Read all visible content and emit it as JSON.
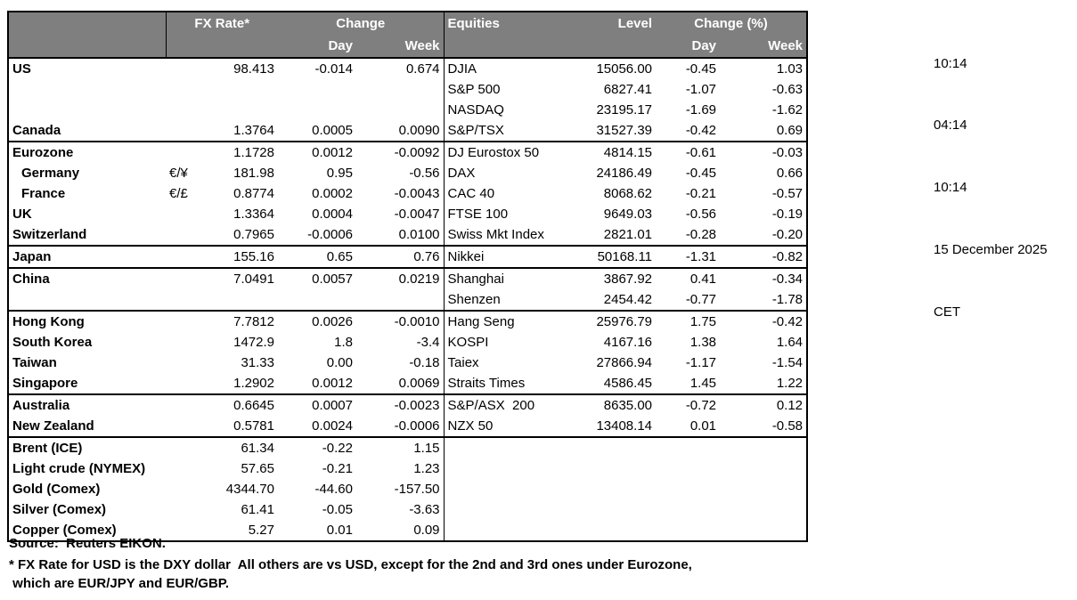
{
  "table": {
    "header": {
      "fx_rate": "FX Rate*",
      "change": "Change",
      "day": "Day",
      "week": "Week",
      "equities": "Equities",
      "level": "Level",
      "change_pct": "Change (%)"
    },
    "rows": [
      {
        "country": "US",
        "pair": "",
        "rate": "98.413",
        "fx_day": "-0.014",
        "fx_week": "0.674",
        "equity": "DJIA",
        "level": "15056.00",
        "eq_day": "-0.45",
        "eq_week": "1.03"
      },
      {
        "country": "",
        "pair": "",
        "rate": "",
        "fx_day": "",
        "fx_week": "",
        "equity": "S&P 500",
        "level": "6827.41",
        "eq_day": "-1.07",
        "eq_week": "-0.63"
      },
      {
        "country": "",
        "pair": "",
        "rate": "",
        "fx_day": "",
        "fx_week": "",
        "equity": "NASDAQ",
        "level": "23195.17",
        "eq_day": "-1.69",
        "eq_week": "-1.62"
      },
      {
        "country": "Canada",
        "pair": "",
        "rate": "1.3764",
        "fx_day": "0.0005",
        "fx_week": "0.0090",
        "equity": "S&P/TSX",
        "level": "31527.39",
        "eq_day": "-0.42",
        "eq_week": "0.69",
        "group_end": true
      },
      {
        "country": "Eurozone",
        "pair": "",
        "rate": "1.1728",
        "fx_day": "0.0012",
        "fx_week": "-0.0092",
        "equity": "DJ Eurostox 50",
        "level": "4814.15",
        "eq_day": "-0.61",
        "eq_week": "-0.03"
      },
      {
        "country": "Germany",
        "indent": true,
        "pair": "€/¥",
        "rate": "181.98",
        "fx_day": "0.95",
        "fx_week": "-0.56",
        "equity": "DAX",
        "level": "24186.49",
        "eq_day": "-0.45",
        "eq_week": "0.66"
      },
      {
        "country": "France",
        "indent": true,
        "pair": "€/£",
        "rate": "0.8774",
        "fx_day": "0.0002",
        "fx_week": "-0.0043",
        "equity": "CAC 40",
        "level": "8068.62",
        "eq_day": "-0.21",
        "eq_week": "-0.57"
      },
      {
        "country": "UK",
        "pair": "",
        "rate": "1.3364",
        "fx_day": "0.0004",
        "fx_week": "-0.0047",
        "equity": "FTSE 100",
        "level": "9649.03",
        "eq_day": "-0.56",
        "eq_week": "-0.19"
      },
      {
        "country": "Switzerland",
        "pair": "",
        "rate": "0.7965",
        "fx_day": "-0.0006",
        "fx_week": "0.0100",
        "equity": "Swiss Mkt Index",
        "level": "2821.01",
        "eq_day": "-0.28",
        "eq_week": "-0.20",
        "group_end": true
      },
      {
        "country": "Japan",
        "pair": "",
        "rate": "155.16",
        "fx_day": "0.65",
        "fx_week": "0.76",
        "equity": "Nikkei",
        "level": "50168.11",
        "eq_day": "-1.31",
        "eq_week": "-0.82",
        "group_end": true
      },
      {
        "country": "China",
        "pair": "",
        "rate": "7.0491",
        "fx_day": "0.0057",
        "fx_week": "0.0219",
        "equity": "Shanghai",
        "level": "3867.92",
        "eq_day": "0.41",
        "eq_week": "-0.34"
      },
      {
        "country": "",
        "pair": "",
        "rate": "",
        "fx_day": "",
        "fx_week": "",
        "equity": "Shenzen",
        "level": "2454.42",
        "eq_day": "-0.77",
        "eq_week": "-1.78",
        "group_end": true
      },
      {
        "country": "Hong Kong",
        "pair": "",
        "rate": "7.7812",
        "fx_day": "0.0026",
        "fx_week": "-0.0010",
        "equity": "Hang Seng",
        "level": "25976.79",
        "eq_day": "1.75",
        "eq_week": "-0.42"
      },
      {
        "country": "South Korea",
        "pair": "",
        "rate": "1472.9",
        "fx_day": "1.8",
        "fx_week": "-3.4",
        "equity": "KOSPI",
        "level": "4167.16",
        "eq_day": "1.38",
        "eq_week": "1.64"
      },
      {
        "country": "Taiwan",
        "pair": "",
        "rate": "31.33",
        "fx_day": "0.00",
        "fx_week": "-0.18",
        "equity": "Taiex",
        "level": "27866.94",
        "eq_day": "-1.17",
        "eq_week": "-1.54"
      },
      {
        "country": "Singapore",
        "pair": "",
        "rate": "1.2902",
        "fx_day": "0.0012",
        "fx_week": "0.0069",
        "equity": "Straits Times",
        "level": "4586.45",
        "eq_day": "1.45",
        "eq_week": "1.22",
        "group_end": true
      },
      {
        "country": "Australia",
        "pair": "",
        "rate": "0.6645",
        "fx_day": "0.0007",
        "fx_week": "-0.0023",
        "equity": "S&P/ASX  200",
        "level": "8635.00",
        "eq_day": "-0.72",
        "eq_week": "0.12"
      },
      {
        "country": "New Zealand",
        "pair": "",
        "rate": "0.5781",
        "fx_day": "0.0024",
        "fx_week": "-0.0006",
        "equity": "NZX 50",
        "level": "13408.14",
        "eq_day": "0.01",
        "eq_week": "-0.58",
        "group_end": true
      },
      {
        "country": "Brent (ICE)",
        "pair": "",
        "rate": "61.34",
        "fx_day": "-0.22",
        "fx_week": "1.15",
        "equity": "",
        "level": "",
        "eq_day": "",
        "eq_week": ""
      },
      {
        "country": "Light crude (NYMEX)",
        "pair": "",
        "rate": "57.65",
        "fx_day": "-0.21",
        "fx_week": "1.23",
        "equity": "",
        "level": "",
        "eq_day": "",
        "eq_week": ""
      },
      {
        "country": "Gold (Comex)",
        "pair": "",
        "rate": "4344.70",
        "fx_day": "-44.60",
        "fx_week": "-157.50",
        "equity": "",
        "level": "",
        "eq_day": "",
        "eq_week": ""
      },
      {
        "country": "Silver (Comex)",
        "pair": "",
        "rate": "61.41",
        "fx_day": "-0.05",
        "fx_week": "-3.63",
        "equity": "",
        "level": "",
        "eq_day": "",
        "eq_week": ""
      },
      {
        "country": "Copper (Comex)",
        "pair": "",
        "rate": "5.27",
        "fx_day": "0.01",
        "fx_week": "0.09",
        "equity": "",
        "level": "",
        "eq_day": "",
        "eq_week": ""
      }
    ]
  },
  "times": [
    "10:14",
    "04:14",
    "10:14",
    "15 December 2025",
    "CET"
  ],
  "footer": {
    "source": "Source:  Reuters EIKON.",
    "footnote1": "* FX Rate for USD is the DXY dollar  All others are vs USD, except for the 2nd and 3rd ones under Eurozone,",
    "footnote2": " which are EUR/JPY and EUR/GBP."
  },
  "colors": {
    "header_bg": "#7f7f7f",
    "header_text": "#ffffff",
    "border": "#000000",
    "body_text": "#000000",
    "background": "#ffffff"
  }
}
